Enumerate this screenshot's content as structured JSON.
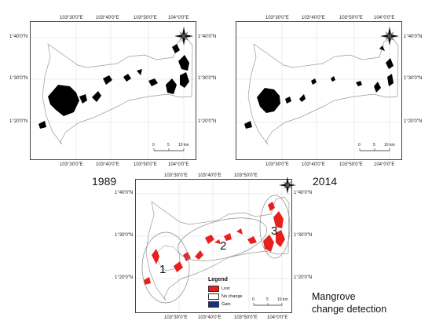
{
  "maps": [
    {
      "id": "map-1989",
      "year": "1989",
      "x_ticks": [
        "103°30'0\"E",
        "103°40'0\"E",
        "103°50'0\"E",
        "104°0'0\"E"
      ],
      "y_ticks": [
        "1°40'0\"N",
        "1°30'0\"N",
        "1°20'0\"N"
      ],
      "scale": [
        "0",
        "5",
        "10 km"
      ]
    },
    {
      "id": "map-2014",
      "year": "2014",
      "x_ticks": [
        "103°30'0\"E",
        "103°40'0\"E",
        "103°50'0\"E",
        "104°0'0\"E"
      ],
      "y_ticks": [
        "1°40'0\"N",
        "1°30'0\"N",
        "1°20'0\"N"
      ],
      "scale": [
        "0",
        "5",
        "10 km"
      ]
    },
    {
      "id": "map-change",
      "x_ticks": [
        "103°30'0\"E",
        "103°40'0\"E",
        "103°50'0\"E",
        "104°0'0\"E"
      ],
      "y_ticks": [
        "1°40'0\"N",
        "1°30'0\"N",
        "1°20'0\"N"
      ],
      "scale": [
        "0",
        "5",
        "10 km"
      ],
      "regions": [
        "1",
        "2",
        "3"
      ],
      "legend": {
        "title": "Legend",
        "items": [
          {
            "label": "Lost",
            "color": "#e8201c"
          },
          {
            "label": "No change",
            "color": "#ffffff"
          },
          {
            "label": "Gain",
            "color": "#1a2f7a"
          }
        ]
      }
    }
  ],
  "caption": {
    "line1": "Mangrove",
    "line2": "change detection"
  },
  "colors": {
    "mangrove": "#000000",
    "lost": "#e8201c",
    "gain": "#1a2f7a",
    "coast": "#9a9a9a"
  }
}
